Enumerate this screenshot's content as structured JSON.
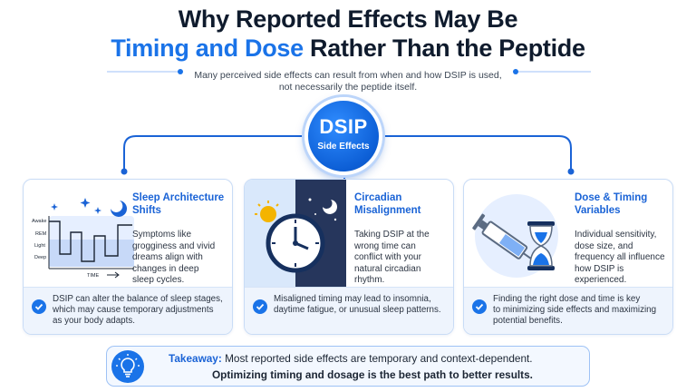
{
  "title": {
    "line1": "Why Reported Effects May Be",
    "line2_highlight": "Timing and Dose",
    "line2_rest": " Rather Than the Peptide"
  },
  "subtitle": {
    "line1": "Many perceived side effects can result from when and how DSIP is used,",
    "line2": "not necessarily the peptide itself."
  },
  "hub": {
    "title": "DSIP",
    "subtitle": "Side Effects"
  },
  "cards": [
    {
      "title_line1": "Sleep Architecture",
      "title_line2": "Shifts",
      "body": [
        "Symptoms like",
        "grogginess and vivid",
        "dreams align with",
        "changes in deep",
        "sleep cycles."
      ],
      "note": [
        "DSIP can alter the balance of sleep stages,",
        "which may cause temporary adjustments",
        "as your body adapts."
      ],
      "icon": "sleep-stage-chart-icon",
      "chart_labels": {
        "awake": "Awake",
        "rem": "REM",
        "light": "Light",
        "deep": "Deep",
        "time": "TIME"
      }
    },
    {
      "title_line1": "Circadian",
      "title_line2": "Misalignment",
      "body": [
        "Taking DSIP at the",
        "wrong time can",
        "conflict with your",
        "natural circadian",
        "rhythm."
      ],
      "note": [
        "Misaligned timing may lead to insomnia,",
        "daytime fatigue, or unusual sleep patterns."
      ],
      "icon": "day-night-clock-icon"
    },
    {
      "title_line1": "Dose & Timing",
      "title_line2": "Variables",
      "body": [
        "Individual sensitivity,",
        "dose size, and",
        "frequency all influence",
        "how DSIP is",
        "experienced."
      ],
      "note": [
        "Finding the right dose and time is key",
        "to minimizing side effects and maximizing",
        "potential benefits."
      ],
      "icon": "syringe-hourglass-icon"
    }
  ],
  "takeaway": {
    "label": "Takeaway:",
    "line1": " Most reported side effects are temporary and context-dependent.",
    "line2": "Optimizing timing and dosage is the best path to better results.",
    "icon": "lightbulb-icon"
  },
  "colors": {
    "accent": "#1a73e8",
    "navy": "#0f1b2d",
    "card_border": "#c9dcf6"
  }
}
